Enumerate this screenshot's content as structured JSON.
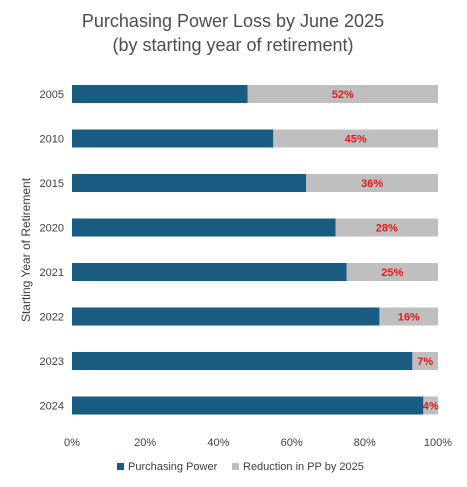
{
  "chart_data": {
    "type": "bar",
    "orientation": "horizontal",
    "stacked": true,
    "title": "Purchasing Power Loss by June 2025",
    "subtitle": "(by starting year of retirement)",
    "ylabel": "Starting Year of Retirement",
    "xlabel": "",
    "categories": [
      "2005",
      "2010",
      "2015",
      "2020",
      "2021",
      "2022",
      "2023",
      "2024"
    ],
    "series": [
      {
        "name": "Purchasing Power",
        "values": [
          48,
          55,
          64,
          72,
          75,
          84,
          93,
          96
        ],
        "color": "#1a5b82"
      },
      {
        "name": "Reduction in PP by 2025",
        "values": [
          52,
          45,
          36,
          28,
          25,
          16,
          7,
          4
        ],
        "color": "#bfbfbf"
      }
    ],
    "data_labels": [
      "52%",
      "45%",
      "36%",
      "28%",
      "25%",
      "16%",
      "7%",
      "4%"
    ],
    "data_label_color": "#e31b1b",
    "xlim": [
      0,
      100
    ],
    "x_ticks": [
      "0%",
      "20%",
      "40%",
      "60%",
      "80%",
      "100%"
    ],
    "grid": false,
    "legend_position": "bottom"
  }
}
